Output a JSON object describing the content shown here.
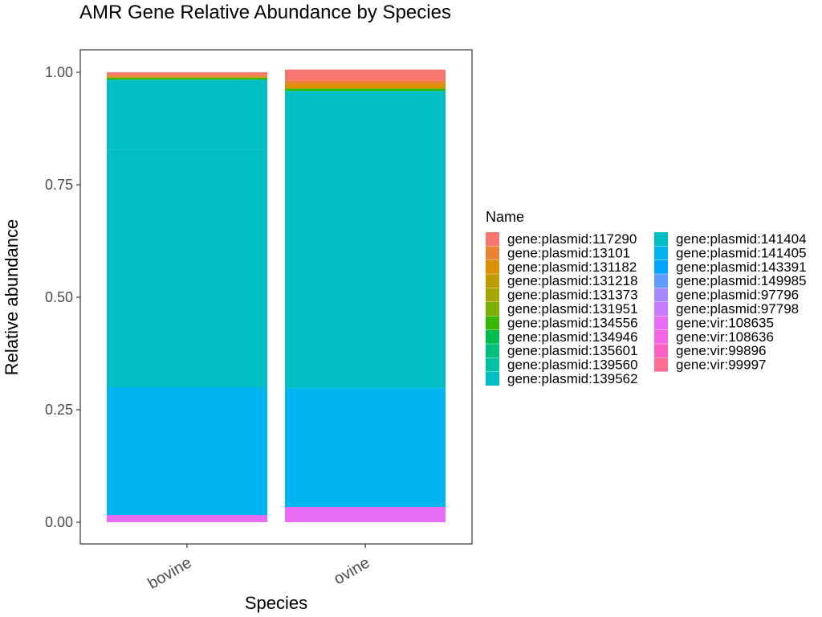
{
  "chart_data": {
    "type": "bar",
    "stacked": true,
    "title": "AMR Gene Relative Abundance by Species",
    "xlabel": "Species",
    "ylabel": "Relative abundance",
    "categories": [
      "bovine",
      "ovine"
    ],
    "ylim": [
      0,
      1
    ],
    "y_ticks": [
      "0.00",
      "0.25",
      "0.50",
      "0.75",
      "1.00"
    ],
    "y_tick_values": [
      0,
      0.25,
      0.5,
      0.75,
      1.0
    ],
    "grid": false,
    "legend_title": "Name",
    "legend_position": "right",
    "series": [
      {
        "name": "gene:plasmid:117290",
        "color": "#F8766D",
        "values": [
          0.006,
          0.025
        ]
      },
      {
        "name": "gene:plasmid:13101",
        "color": "#EA8331",
        "values": [
          0.004,
          0.007
        ]
      },
      {
        "name": "gene:plasmid:131182",
        "color": "#D89000",
        "values": [
          0.002,
          0.01
        ]
      },
      {
        "name": "gene:plasmid:131218",
        "color": "#C09B00",
        "values": [
          0.0,
          0.0
        ]
      },
      {
        "name": "gene:plasmid:131373",
        "color": "#A3A500",
        "values": [
          0.0,
          0.0
        ]
      },
      {
        "name": "gene:plasmid:131951",
        "color": "#7CAE00",
        "values": [
          0.0,
          0.0
        ]
      },
      {
        "name": "gene:plasmid:134556",
        "color": "#39B600",
        "values": [
          0.004,
          0.005
        ]
      },
      {
        "name": "gene:plasmid:134946",
        "color": "#00BB4E",
        "values": [
          0.0,
          0.0
        ]
      },
      {
        "name": "gene:plasmid:135601",
        "color": "#00BF7D",
        "values": [
          0.0,
          0.0
        ]
      },
      {
        "name": "gene:plasmid:139560",
        "color": "#00C1A3",
        "values": [
          0.002,
          0.002
        ]
      },
      {
        "name": "gene:plasmid:139562",
        "color": "#00BFC4",
        "values": [
          0.154,
          0.132
        ]
      },
      {
        "name": "gene:plasmid:141404",
        "color": "#00BFC4",
        "values": [
          0.528,
          0.527
        ]
      },
      {
        "name": "gene:plasmid:141405",
        "color": "#00B4EF",
        "values": [
          0.284,
          0.264
        ]
      },
      {
        "name": "gene:plasmid:143391",
        "color": "#00A5FF",
        "values": [
          0.0,
          0.0
        ]
      },
      {
        "name": "gene:plasmid:149985",
        "color": "#619CFF",
        "values": [
          0.0,
          0.0
        ]
      },
      {
        "name": "gene:plasmid:97796",
        "color": "#A58AFF",
        "values": [
          0.0,
          0.0
        ]
      },
      {
        "name": "gene:plasmid:97798",
        "color": "#C77CFF",
        "values": [
          0.0,
          0.0
        ]
      },
      {
        "name": "gene:vir:108635",
        "color": "#E76BF3",
        "values": [
          0.016,
          0.034
        ]
      },
      {
        "name": "gene:vir:108636",
        "color": "#F564E3",
        "values": [
          0.0,
          0.0
        ]
      },
      {
        "name": "gene:vir:99896",
        "color": "#FF61C3",
        "values": [
          0.0,
          0.0
        ]
      },
      {
        "name": "gene:vir:99997",
        "color": "#FF6C91",
        "values": [
          0.0,
          0.0
        ]
      }
    ],
    "legend_entries": [
      {
        "name": "gene:plasmid:117290",
        "color": "#F8766D"
      },
      {
        "name": "gene:plasmid:13101",
        "color": "#EA8331"
      },
      {
        "name": "gene:plasmid:131182",
        "color": "#D89000"
      },
      {
        "name": "gene:plasmid:131218",
        "color": "#C09B00"
      },
      {
        "name": "gene:plasmid:131373",
        "color": "#A3A500"
      },
      {
        "name": "gene:plasmid:131951",
        "color": "#7CAE00"
      },
      {
        "name": "gene:plasmid:134556",
        "color": "#39B600"
      },
      {
        "name": "gene:plasmid:134946",
        "color": "#00BB4E"
      },
      {
        "name": "gene:plasmid:135601",
        "color": "#00BF7D"
      },
      {
        "name": "gene:plasmid:139560",
        "color": "#00C1A3"
      },
      {
        "name": "gene:plasmid:139562",
        "color": "#00BFC4"
      },
      {
        "name": "gene:plasmid:141404",
        "color": "#00BFC4"
      },
      {
        "name": "gene:plasmid:141405",
        "color": "#00B4EF"
      },
      {
        "name": "gene:plasmid:143391",
        "color": "#00A5FF"
      },
      {
        "name": "gene:plasmid:149985",
        "color": "#619CFF"
      },
      {
        "name": "gene:plasmid:97796",
        "color": "#A58AFF"
      },
      {
        "name": "gene:plasmid:97798",
        "color": "#C77CFF"
      },
      {
        "name": "gene:vir:108635",
        "color": "#E76BF3"
      },
      {
        "name": "gene:vir:108636",
        "color": "#F564E3"
      },
      {
        "name": "gene:vir:99896",
        "color": "#FF61C3"
      },
      {
        "name": "gene:vir:99997",
        "color": "#FF6C91"
      }
    ]
  }
}
